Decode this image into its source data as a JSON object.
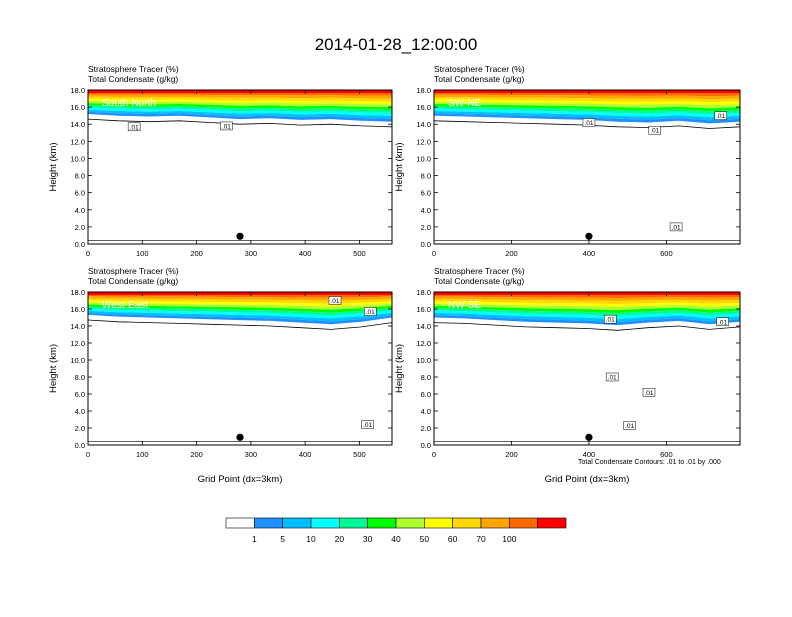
{
  "main_title": "2014-01-28_12:00:00",
  "footnote": "Total Condensate Contours: .01 to .01 by .000",
  "chart_data": [
    {
      "type": "heatmap",
      "id": "south-north",
      "title_line1": "Stratosphere Tracer   (%)",
      "title_line2": "Total Condensate   (g/kg)",
      "panel_label": "South-North",
      "ylabel": "Height (km)",
      "xlabel": "",
      "xlim": [
        0,
        560
      ],
      "ylim": [
        0,
        18
      ],
      "xticks": [
        0,
        100,
        200,
        300,
        400,
        500
      ],
      "yticks": [
        "0.0",
        "2.0",
        "4.0",
        "6.0",
        "8.0",
        "10.0",
        "12.0",
        "14.0",
        "16.0",
        "18.0"
      ],
      "tropopause_base_km": [
        15.2,
        15.0,
        14.9,
        15.0,
        14.8,
        14.6,
        14.7,
        14.5,
        14.6,
        14.4,
        14.3
      ],
      "contour_labels": [
        {
          "text": ".01",
          "x": 85,
          "y": 13.7
        },
        {
          "text": ".01",
          "x": 255,
          "y": 13.8
        }
      ],
      "marker_x": 280,
      "contour_value": ".01"
    },
    {
      "type": "heatmap",
      "id": "sw-ne",
      "title_line1": "Stratosphere Tracer   (%)",
      "title_line2": "Total Condensate   (g/kg)",
      "panel_label": "SW-NE",
      "ylabel": "Height (km)",
      "xlabel": "",
      "xlim": [
        0,
        790
      ],
      "ylim": [
        0,
        18
      ],
      "xticks": [
        0,
        200,
        400,
        600
      ],
      "yticks": [
        "0.0",
        "2.0",
        "4.0",
        "6.0",
        "8.0",
        "10.0",
        "12.0",
        "14.0",
        "16.0",
        "18.0"
      ],
      "tropopause_base_km": [
        15.0,
        14.9,
        14.8,
        14.7,
        14.6,
        14.5,
        14.3,
        14.2,
        14.4,
        14.1,
        14.3
      ],
      "contour_labels": [
        {
          "text": ".01",
          "x": 400,
          "y": 14.2
        },
        {
          "text": ".01",
          "x": 570,
          "y": 13.3
        },
        {
          "text": ".01",
          "x": 740,
          "y": 15.0
        },
        {
          "text": ".01",
          "x": 625,
          "y": 2.0
        }
      ],
      "marker_x": 400,
      "contour_value": ".01"
    },
    {
      "type": "heatmap",
      "id": "west-east",
      "title_line1": "Stratosphere Tracer   (%)",
      "title_line2": "Total Condensate   (g/kg)",
      "panel_label": "West-East",
      "ylabel": "Height (km)",
      "xlabel": "Grid Point (dx=3km)",
      "xlim": [
        0,
        560
      ],
      "ylim": [
        0,
        18
      ],
      "xticks": [
        0,
        100,
        200,
        300,
        400,
        500
      ],
      "yticks": [
        "0.0",
        "2.0",
        "4.0",
        "6.0",
        "8.0",
        "10.0",
        "12.0",
        "14.0",
        "16.0",
        "18.0"
      ],
      "tropopause_base_km": [
        15.3,
        15.1,
        15.0,
        14.9,
        14.8,
        14.7,
        14.6,
        14.4,
        14.2,
        14.5,
        15.0
      ],
      "contour_labels": [
        {
          "text": ".01",
          "x": 455,
          "y": 17.0
        },
        {
          "text": ".01",
          "x": 520,
          "y": 15.7
        },
        {
          "text": ".01",
          "x": 515,
          "y": 2.4
        }
      ],
      "marker_x": 280,
      "contour_value": ".01"
    },
    {
      "type": "heatmap",
      "id": "nw-se",
      "title_line1": "Stratosphere Tracer   (%)",
      "title_line2": "Total Condensate   (g/kg)",
      "panel_label": "NW-SE",
      "ylabel": "Height (km)",
      "xlabel": "Grid Point (dx=3km)",
      "xlim": [
        0,
        790
      ],
      "ylim": [
        0,
        18
      ],
      "xticks": [
        0,
        200,
        400,
        600
      ],
      "yticks": [
        "0.0",
        "2.0",
        "4.0",
        "6.0",
        "8.0",
        "10.0",
        "12.0",
        "14.0",
        "16.0",
        "18.0"
      ],
      "tropopause_base_km": [
        15.0,
        14.9,
        14.7,
        14.5,
        14.4,
        14.3,
        14.1,
        14.4,
        14.6,
        14.2,
        14.5
      ],
      "contour_labels": [
        {
          "text": ".01",
          "x": 455,
          "y": 14.8
        },
        {
          "text": ".01",
          "x": 745,
          "y": 14.5
        },
        {
          "text": ".01",
          "x": 460,
          "y": 8.0
        },
        {
          "text": ".01",
          "x": 555,
          "y": 6.2
        },
        {
          "text": ".01",
          "x": 505,
          "y": 2.3
        }
      ],
      "marker_x": 400,
      "contour_value": ".01"
    }
  ],
  "colorbar": {
    "labels": [
      "1",
      "5",
      "10",
      "20",
      "30",
      "40",
      "50",
      "60",
      "70",
      "100"
    ],
    "colors": [
      "#ffffff",
      "#1e90ff",
      "#00bfff",
      "#00ffff",
      "#00fa9a",
      "#00ff00",
      "#adff2f",
      "#ffff00",
      "#ffd700",
      "#ffa500",
      "#ff6a00",
      "#ff0000"
    ]
  }
}
